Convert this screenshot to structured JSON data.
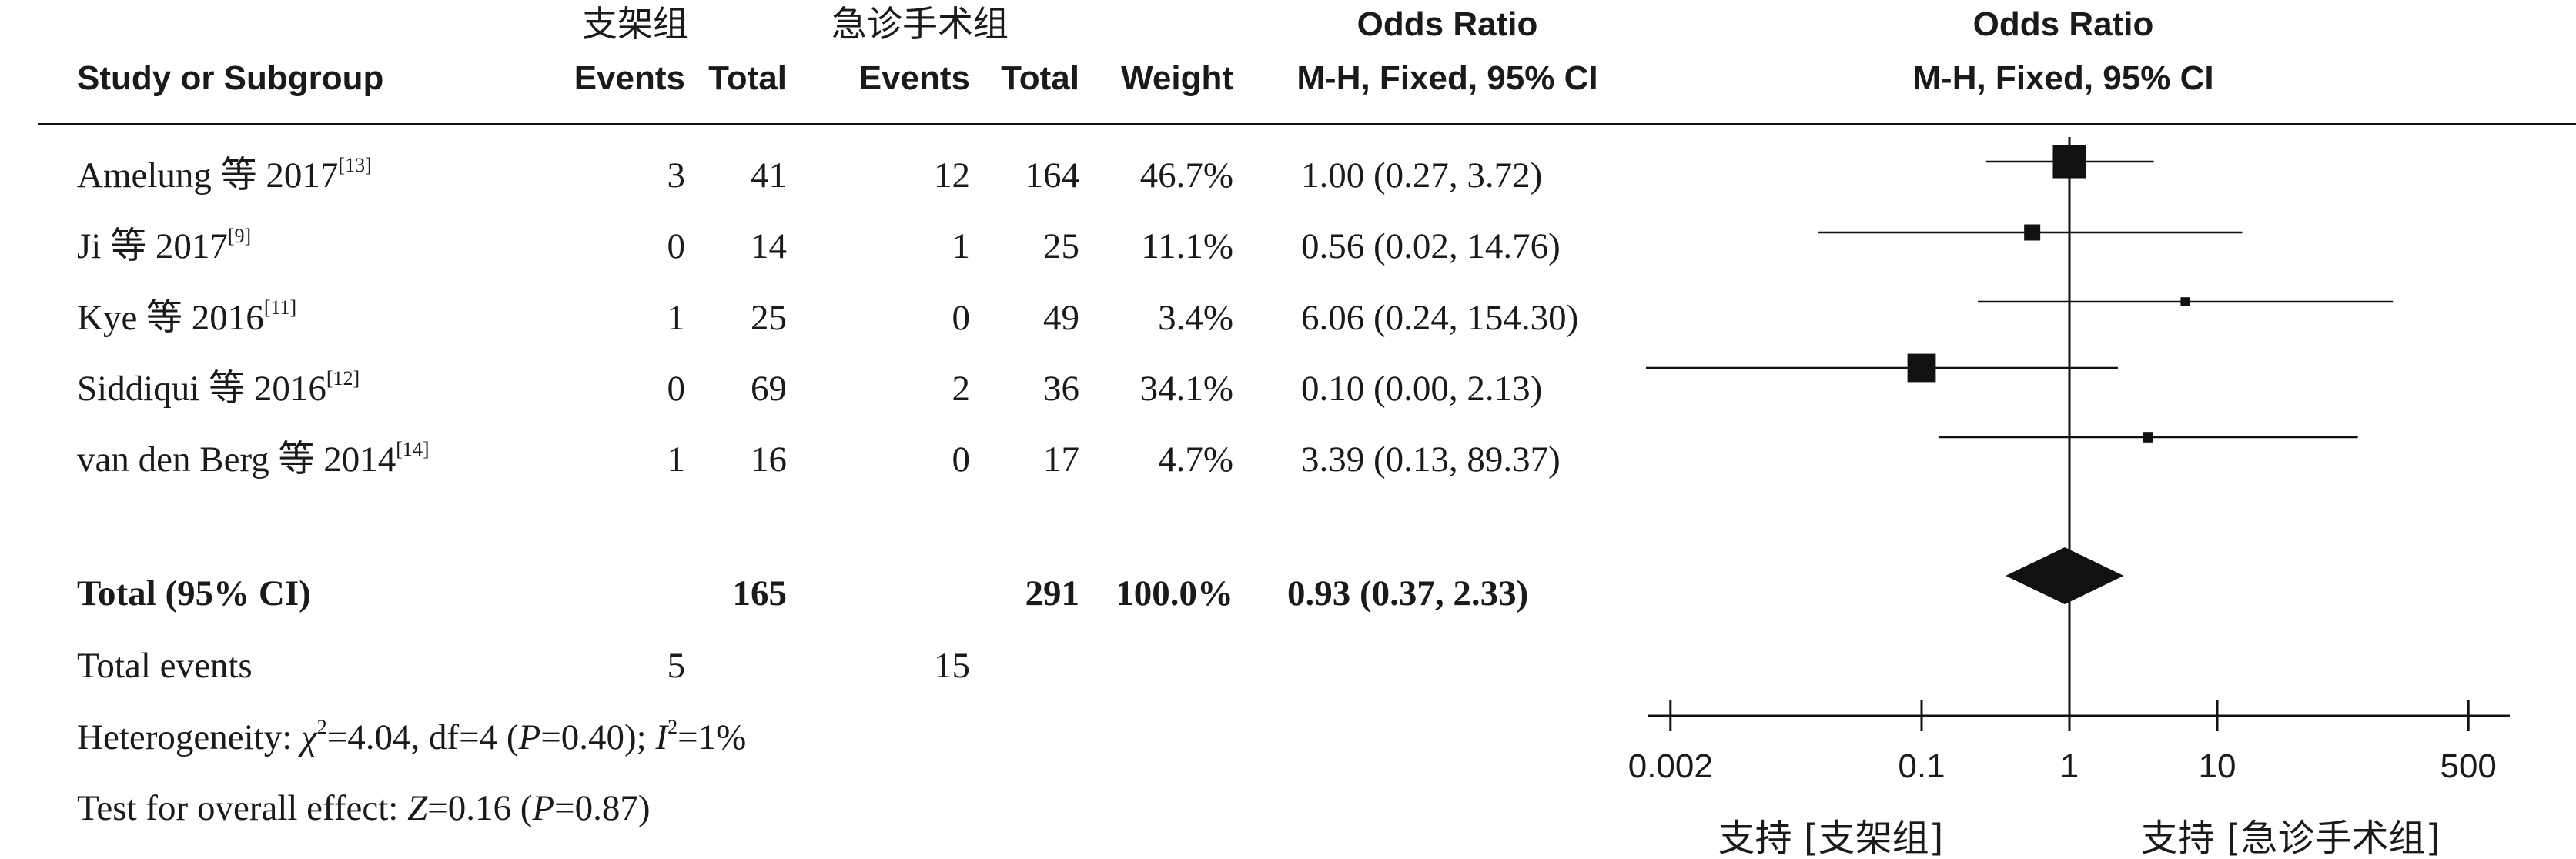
{
  "headers": {
    "group1": "支架组",
    "group2": "急诊手术组",
    "study": "Study or Subgroup",
    "events": "Events",
    "total": "Total",
    "weight": "Weight",
    "or_title": "Odds Ratio",
    "or_method": "M-H, Fixed, 95% CI"
  },
  "studies": [
    {
      "name": "Amelung 等 2017",
      "ref": "[13]",
      "e1": "3",
      "t1": "41",
      "e2": "12",
      "t2": "164",
      "weight": "46.7%",
      "ci_text": "1.00 (0.27, 3.72)"
    },
    {
      "name": "Ji 等 2017",
      "ref": "[9]",
      "e1": "0",
      "t1": "14",
      "e2": "1",
      "t2": "25",
      "weight": "11.1%",
      "ci_text": "0.56 (0.02, 14.76)"
    },
    {
      "name": "Kye 等 2016",
      "ref": "[11]",
      "e1": "1",
      "t1": "25",
      "e2": "0",
      "t2": "49",
      "weight": "3.4%",
      "ci_text": "6.06 (0.24, 154.30)"
    },
    {
      "name": "Siddiqui 等 2016",
      "ref": "[12]",
      "e1": "0",
      "t1": "69",
      "e2": "2",
      "t2": "36",
      "weight": "34.1%",
      "ci_text": "0.10 (0.00, 2.13)"
    },
    {
      "name": "van den Berg 等 2014",
      "ref": "[14]",
      "e1": "1",
      "t1": "16",
      "e2": "0",
      "t2": "17",
      "weight": "4.7%",
      "ci_text": "3.39 (0.13, 89.37)"
    }
  ],
  "total": {
    "label": "Total (95% CI)",
    "t1": "165",
    "t2": "291",
    "weight": "100.0%",
    "ci_text": "0.93 (0.37, 2.33)"
  },
  "total_events": {
    "label": "Total events",
    "e1": "5",
    "e2": "15"
  },
  "heterogeneity": {
    "prefix": "Heterogeneity: ",
    "chi": "χ",
    "chi_rest": "=4.04, df=4 (",
    "p": "P",
    "p_rest": "=0.40); ",
    "i": "I",
    "i_rest": "=1%"
  },
  "overall": {
    "prefix": "Test for overall effect: ",
    "z": "Z",
    "z_rest": "=0.16 (",
    "p": "P",
    "p_rest": "=0.87)"
  },
  "chart_data": {
    "type": "forest",
    "scale": "log",
    "xlim": [
      0.002,
      500
    ],
    "ticks": [
      0.002,
      0.1,
      1,
      10,
      500
    ],
    "tick_labels": [
      "0.002",
      "0.1",
      "1",
      "10",
      "500"
    ],
    "favours_left": "支持 [支架组]",
    "favours_right": "支持 [急诊手术组]",
    "studies": [
      {
        "name": "Amelung 等 2017",
        "or": 1.0,
        "lo": 0.27,
        "hi": 3.72,
        "weight": 46.7
      },
      {
        "name": "Ji 等 2017",
        "or": 0.56,
        "lo": 0.02,
        "hi": 14.76,
        "weight": 11.1
      },
      {
        "name": "Kye 等 2016",
        "or": 6.06,
        "lo": 0.24,
        "hi": 154.3,
        "weight": 3.4
      },
      {
        "name": "Siddiqui 等 2016",
        "or": 0.1,
        "lo": 0.0,
        "hi": 2.13,
        "weight": 34.1
      },
      {
        "name": "van den Berg 等 2014",
        "or": 3.39,
        "lo": 0.13,
        "hi": 89.37,
        "weight": 4.7
      }
    ],
    "pooled": {
      "or": 0.93,
      "lo": 0.37,
      "hi": 2.33
    }
  }
}
